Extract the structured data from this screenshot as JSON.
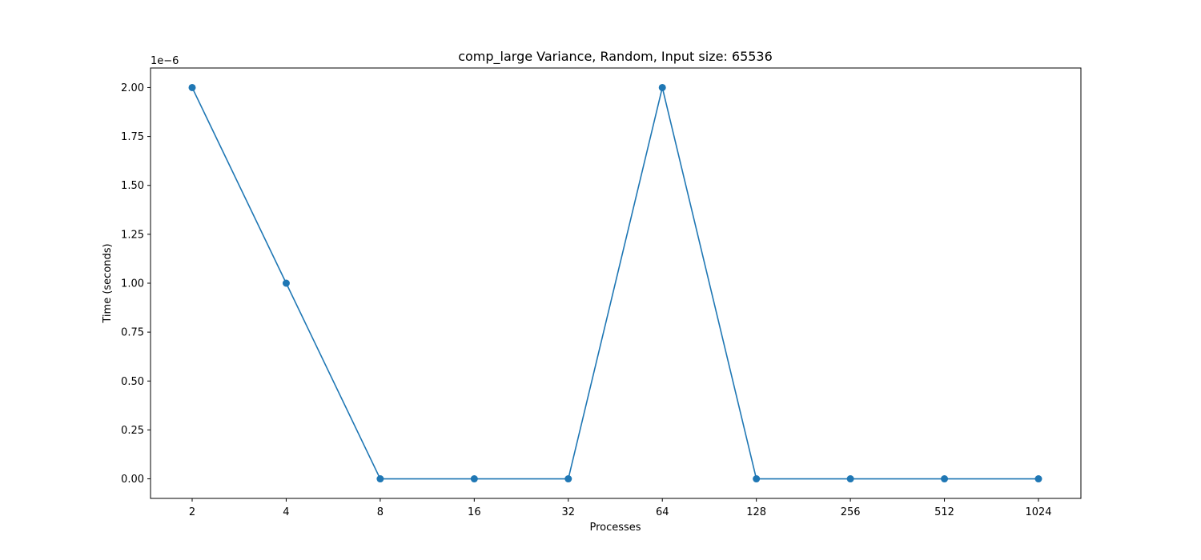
{
  "chart_data": {
    "type": "line",
    "title": "comp_large Variance, Random, Input size: 65536",
    "xlabel": "Processes",
    "ylabel": "Time (seconds)",
    "y_offset_label": "1e−6",
    "categories": [
      "2",
      "4",
      "8",
      "16",
      "32",
      "64",
      "128",
      "256",
      "512",
      "1024"
    ],
    "series": [
      {
        "values": [
          2e-06,
          1e-06,
          0,
          0,
          0,
          2e-06,
          0,
          0,
          0,
          0
        ],
        "color": "#1f77b4",
        "marker": "circle"
      }
    ],
    "y_ticks": [
      "0.00",
      "0.25",
      "0.50",
      "0.75",
      "1.00",
      "1.25",
      "1.50",
      "1.75",
      "2.00"
    ],
    "y_tick_values": [
      0,
      2.5e-07,
      5e-07,
      7.5e-07,
      1e-06,
      1.25e-06,
      1.5e-06,
      1.75e-06,
      2e-06
    ],
    "ylim": [
      -1e-07,
      2.1e-06
    ],
    "grid": false,
    "legend": "none"
  }
}
